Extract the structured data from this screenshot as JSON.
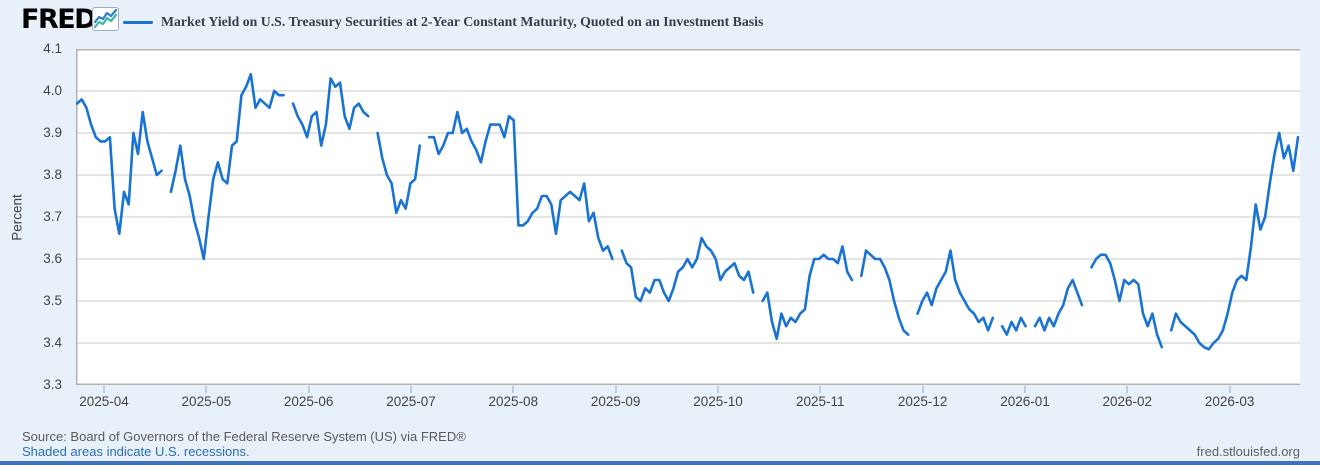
{
  "header": {
    "logo_text": "FRED",
    "registered_mark": "®"
  },
  "footer": {
    "source_text": "Source: Board of Governors of the Federal Reserve System (US) via FRED®",
    "recession_note": "Shaded areas indicate U.S. recessions.",
    "site_link": "fred.stlouisfed.org"
  },
  "colors": {
    "line": "#1873d3",
    "background": "#e8f0f9",
    "plot_background": "#ffffff",
    "grid": "#c9c9c9",
    "frame": "#b2b2b2",
    "tick_mark": "#b9cee6",
    "axis_text": "#444444",
    "title_text": "#3a3f47",
    "link_blue": "#2c6fb5",
    "bottom_bar": "#3f72ba",
    "logo_icon_blue": "#2d7dd2",
    "logo_icon_teal": "#3eb7a8"
  },
  "chart_data": {
    "type": "line",
    "title": "Market Yield on U.S. Treasury Securities at 2-Year Constant Maturity, Quoted on an Investment Basis",
    "ylabel": "Percent",
    "ylim": [
      3.3,
      4.1
    ],
    "yticks": [
      "4.1",
      "4.0",
      "3.9",
      "3.8",
      "3.7",
      "3.6",
      "3.5",
      "3.4",
      "3.3"
    ],
    "xticks": [
      "2025-04",
      "2025-05",
      "2025-06",
      "2025-07",
      "2025-08",
      "2025-09",
      "2025-10",
      "2025-11",
      "2025-12",
      "2026-01",
      "2026-02",
      "2026-03"
    ],
    "grid": true,
    "legend_position": "top",
    "frequency": "daily",
    "gaps_are_market_holidays": true,
    "series": [
      {
        "name": "Market Yield on U.S. Treasury Securities at 2-Year Constant Maturity, Quoted on an Investment Basis",
        "color": "#1873d3",
        "values": [
          3.97,
          3.98,
          3.96,
          3.92,
          3.89,
          3.88,
          3.88,
          3.89,
          3.72,
          3.66,
          3.76,
          3.73,
          3.9,
          3.85,
          3.95,
          3.88,
          3.84,
          3.8,
          3.81,
          null,
          3.76,
          3.81,
          3.87,
          3.79,
          3.75,
          3.69,
          3.65,
          3.6,
          3.7,
          3.79,
          3.83,
          3.79,
          3.78,
          3.87,
          3.88,
          3.99,
          4.01,
          4.04,
          3.96,
          3.98,
          3.97,
          3.96,
          4.0,
          3.99,
          3.99,
          null,
          3.97,
          3.94,
          3.92,
          3.89,
          3.94,
          3.95,
          3.87,
          3.92,
          4.03,
          4.01,
          4.02,
          3.94,
          3.91,
          3.96,
          3.97,
          3.95,
          3.94,
          null,
          3.9,
          3.84,
          3.8,
          3.78,
          3.71,
          3.74,
          3.72,
          3.78,
          3.79,
          3.87,
          null,
          3.89,
          3.89,
          3.85,
          3.87,
          3.9,
          3.9,
          3.95,
          3.9,
          3.91,
          3.88,
          3.86,
          3.83,
          3.88,
          3.92,
          3.92,
          3.92,
          3.89,
          3.94,
          3.93,
          3.68,
          3.68,
          3.69,
          3.71,
          3.72,
          3.75,
          3.75,
          3.73,
          3.66,
          3.74,
          3.75,
          3.76,
          3.75,
          3.74,
          3.78,
          3.69,
          3.71,
          3.65,
          3.62,
          3.63,
          3.6,
          null,
          3.62,
          3.59,
          3.58,
          3.51,
          3.5,
          3.53,
          3.52,
          3.55,
          3.55,
          3.52,
          3.5,
          3.53,
          3.57,
          3.58,
          3.6,
          3.58,
          3.6,
          3.65,
          3.63,
          3.62,
          3.6,
          3.55,
          3.57,
          3.58,
          3.59,
          3.56,
          3.55,
          3.57,
          3.52,
          null,
          3.5,
          3.52,
          3.45,
          3.41,
          3.47,
          3.44,
          3.46,
          3.45,
          3.47,
          3.48,
          3.56,
          3.6,
          3.6,
          3.61,
          3.6,
          3.6,
          3.59,
          3.63,
          3.57,
          3.55,
          null,
          3.56,
          3.62,
          3.61,
          3.6,
          3.6,
          3.58,
          3.55,
          3.5,
          3.46,
          3.43,
          3.42,
          null,
          3.47,
          3.5,
          3.52,
          3.49,
          3.53,
          3.55,
          3.57,
          3.62,
          3.55,
          3.52,
          3.5,
          3.48,
          3.47,
          3.45,
          3.46,
          3.43,
          3.46,
          null,
          3.44,
          3.42,
          3.45,
          3.43,
          3.46,
          3.44,
          null,
          3.44,
          3.46,
          3.43,
          3.46,
          3.44,
          3.47,
          3.49,
          3.53,
          3.55,
          3.52,
          3.49,
          null,
          3.58,
          3.6,
          3.61,
          3.61,
          3.59,
          3.55,
          3.5,
          3.55,
          3.54,
          3.55,
          3.54,
          3.47,
          3.44,
          3.47,
          3.42,
          3.39,
          null,
          3.43,
          3.47,
          3.45,
          3.44,
          3.43,
          3.42,
          3.4,
          3.39,
          3.385,
          3.4,
          3.41,
          3.43,
          3.47,
          3.52,
          3.55,
          3.56,
          3.55,
          3.63,
          3.73,
          3.67,
          3.7,
          3.78,
          3.85,
          3.9,
          3.84,
          3.87,
          3.81,
          3.89
        ]
      }
    ]
  }
}
